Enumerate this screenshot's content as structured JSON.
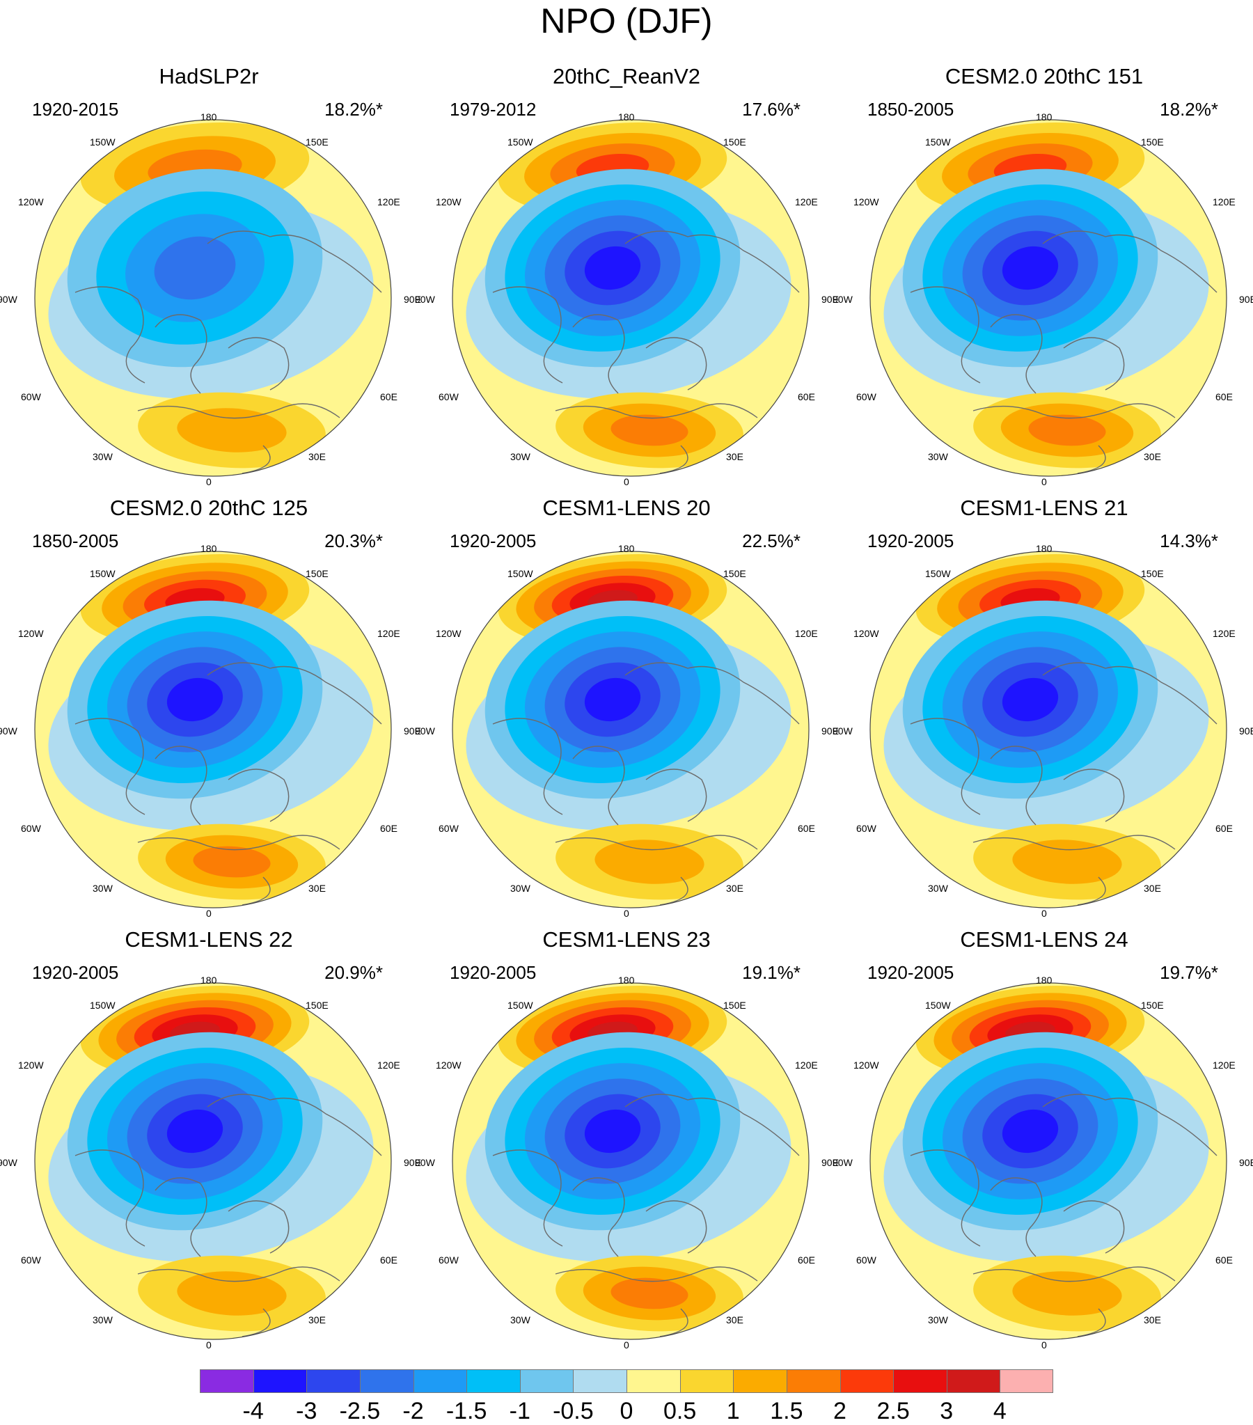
{
  "title": "NPO (DJF)",
  "longitude_labels": [
    "180",
    "150E",
    "120E",
    "90E",
    "60E",
    "30E",
    "0",
    "30W",
    "60W",
    "90W",
    "120W",
    "150W"
  ],
  "panels": [
    {
      "name": "HadSLP2r",
      "period": "1920-2015",
      "variance": "18.2%*",
      "pacific_high": 1.7,
      "atlantic_high": 1.2,
      "polar_low": -2.0
    },
    {
      "name": "20thC_ReanV2",
      "period": "1979-2012",
      "variance": "17.6%*",
      "pacific_high": 2.0,
      "atlantic_high": 1.8,
      "polar_low": -3.0
    },
    {
      "name": "CESM2.0 20thC 151",
      "period": "1850-2005",
      "variance": "18.2%*",
      "pacific_high": 2.4,
      "atlantic_high": 1.8,
      "polar_low": -3.6
    },
    {
      "name": "CESM2.0 20thC 125",
      "period": "1850-2005",
      "variance": "20.3%*",
      "pacific_high": 2.8,
      "atlantic_high": 1.8,
      "polar_low": -3.8
    },
    {
      "name": "CESM1-LENS 20",
      "period": "1920-2005",
      "variance": "22.5%*",
      "pacific_high": 3.1,
      "atlantic_high": 1.2,
      "polar_low": -3.2
    },
    {
      "name": "CESM1-LENS 21",
      "period": "1920-2005",
      "variance": "14.3%*",
      "pacific_high": 2.6,
      "atlantic_high": 1.1,
      "polar_low": -3.0
    },
    {
      "name": "CESM1-LENS 22",
      "period": "1920-2005",
      "variance": "20.9%*",
      "pacific_high": 3.6,
      "atlantic_high": 1.2,
      "polar_low": -3.1
    },
    {
      "name": "CESM1-LENS 23",
      "period": "1920-2005",
      "variance": "19.1%*",
      "pacific_high": 3.1,
      "atlantic_high": 1.8,
      "polar_low": -3.6
    },
    {
      "name": "CESM1-LENS 24",
      "period": "1920-2005",
      "variance": "19.7%*",
      "pacific_high": 3.0,
      "atlantic_high": 1.2,
      "polar_low": -3.2
    }
  ],
  "colorbar": {
    "labels": [
      "-4",
      "-3",
      "-2.5",
      "-2",
      "-1.5",
      "-1",
      "-0.5",
      "0",
      "0.5",
      "1",
      "1.5",
      "2",
      "2.5",
      "3",
      "4"
    ],
    "colors": [
      "#8a2be2",
      "#1e14ff",
      "#2d46ee",
      "#2f73ec",
      "#1e9bf5",
      "#00bff7",
      "#6fc6ee",
      "#b0dcf0",
      "#fff68f",
      "#fad62f",
      "#fbab00",
      "#fb7d05",
      "#fc3a0a",
      "#e80f0f",
      "#d01a1a",
      "#fcb0b0"
    ],
    "thresholds": [
      -4,
      -3,
      -2.5,
      -2,
      -1.5,
      -1,
      -0.5,
      0,
      0.5,
      1,
      1.5,
      2,
      2.5,
      3,
      4
    ]
  }
}
